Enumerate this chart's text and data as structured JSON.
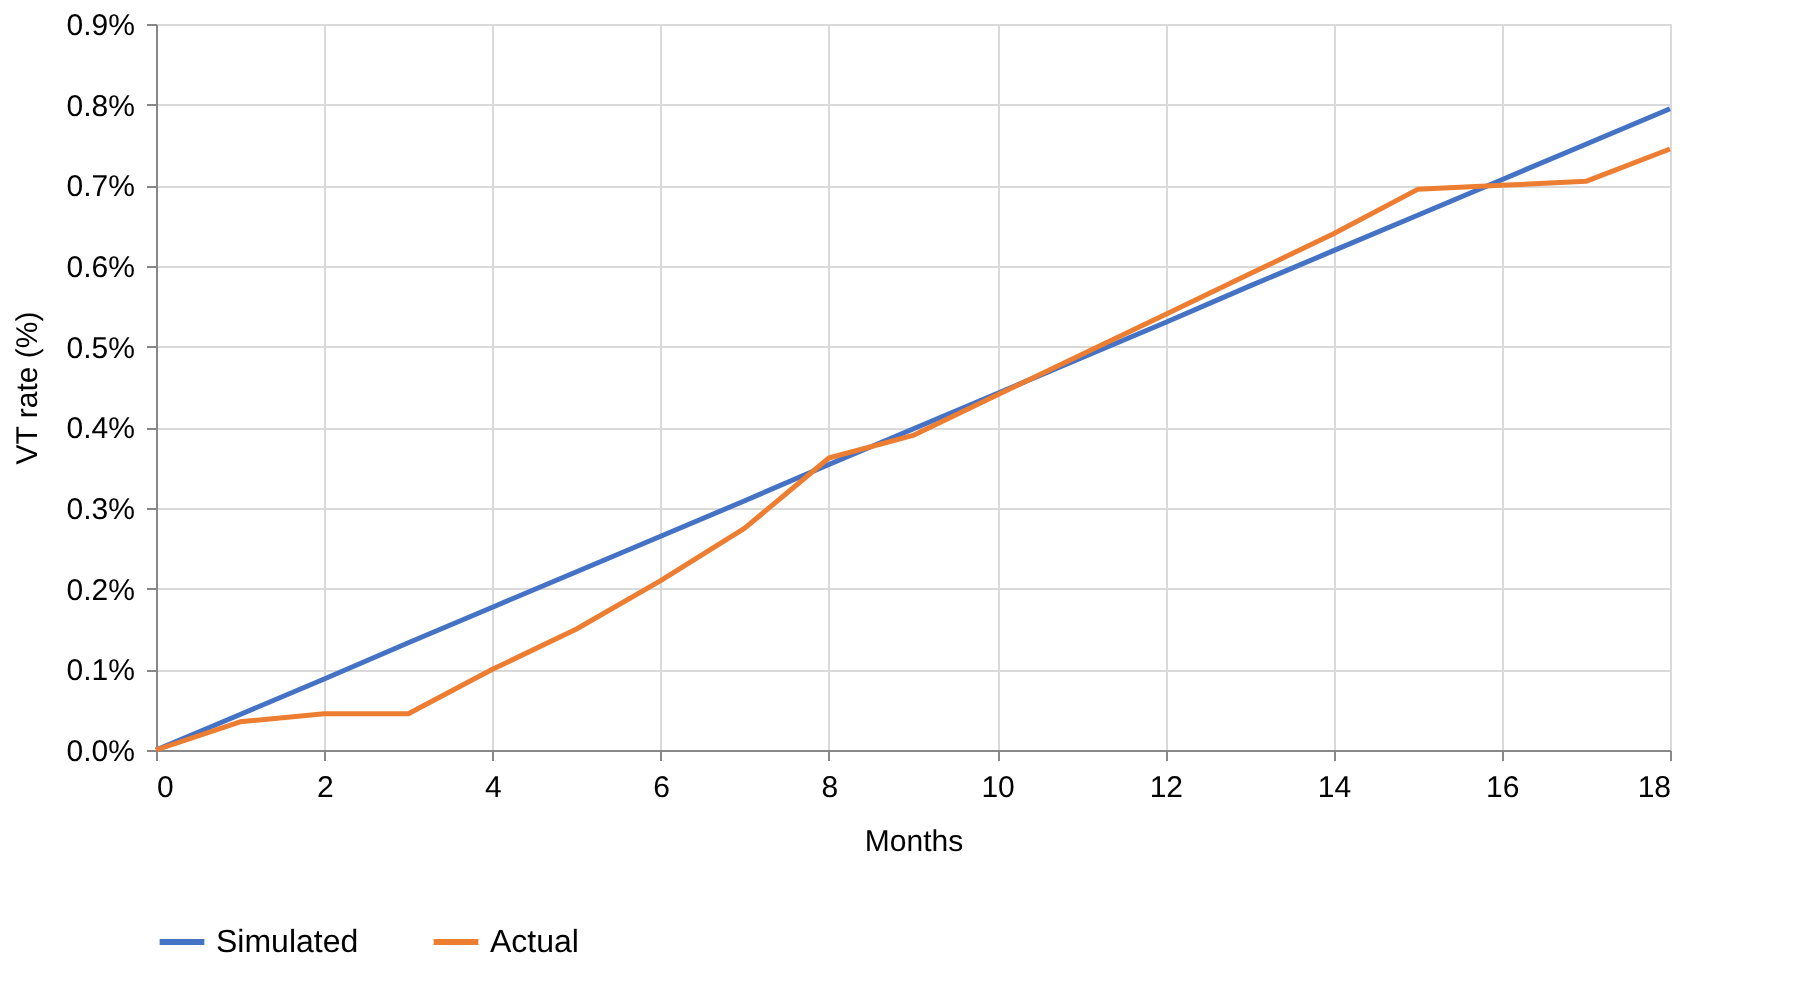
{
  "chart_data": {
    "type": "line",
    "xlabel": "Months",
    "ylabel": "VT rate (%)",
    "x": [
      0,
      1,
      2,
      3,
      4,
      5,
      6,
      7,
      8,
      9,
      10,
      11,
      12,
      13,
      14,
      15,
      16,
      17,
      18
    ],
    "series": [
      {
        "name": "Simulated",
        "color": "#4472c4",
        "values": [
          0,
          0.044,
          0.088,
          0.133,
          0.177,
          0.221,
          0.265,
          0.309,
          0.354,
          0.398,
          0.442,
          0.486,
          0.53,
          0.575,
          0.619,
          0.663,
          0.707,
          0.751,
          0.795
        ]
      },
      {
        "name": "Actual",
        "color": "#ed7d31",
        "values": [
          0,
          0.035,
          0.045,
          0.045,
          0.1,
          0.15,
          0.21,
          0.275,
          0.362,
          0.39,
          0.44,
          0.49,
          0.54,
          0.59,
          0.64,
          0.695,
          0.7,
          0.705,
          0.745
        ]
      }
    ],
    "xlim": [
      0,
      18
    ],
    "xticks": [
      0,
      2,
      4,
      6,
      8,
      10,
      12,
      14,
      16,
      18
    ],
    "ylim": [
      0,
      0.9
    ],
    "yticks": [
      {
        "value": 0,
        "label": "0.0%"
      },
      {
        "value": 0.1,
        "label": "0.1%"
      },
      {
        "value": 0.2,
        "label": "0.2%"
      },
      {
        "value": 0.3,
        "label": "0.3%"
      },
      {
        "value": 0.4,
        "label": "0.4%"
      },
      {
        "value": 0.5,
        "label": "0.5%"
      },
      {
        "value": 0.6,
        "label": "0.6%"
      },
      {
        "value": 0.7,
        "label": "0.7%"
      },
      {
        "value": 0.8,
        "label": "0.8%"
      },
      {
        "value": 0.9,
        "label": "0.9%"
      }
    ],
    "grid": true,
    "legend": "bottom",
    "marker": "none",
    "line_style": "solid"
  }
}
